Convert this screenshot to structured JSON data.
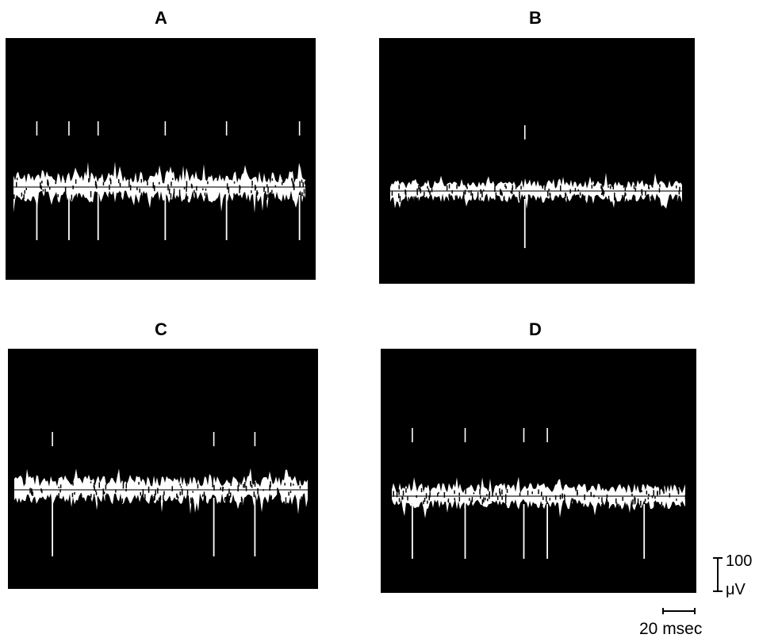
{
  "panels": [
    {
      "label": "A",
      "noise": 1.25,
      "spikes_up": [
        0.08,
        0.19,
        0.29,
        0.52,
        0.73,
        0.98
      ],
      "spikes_down": [
        0.08,
        0.19,
        0.29,
        0.52,
        0.73,
        0.98
      ],
      "seed": 11
    },
    {
      "label": "B",
      "noise": 0.9,
      "spikes_up": [
        0.46
      ],
      "spikes_down": [
        0.46
      ],
      "seed": 23
    },
    {
      "label": "C",
      "noise": 1.15,
      "spikes_up": [
        0.13,
        0.68,
        0.82
      ],
      "spikes_down": [
        0.13,
        0.68,
        0.82
      ],
      "seed": 37
    },
    {
      "label": "D",
      "noise": 1.05,
      "spikes_up": [
        0.07,
        0.25,
        0.45,
        0.53
      ],
      "spikes_down": [
        0.07,
        0.25,
        0.45,
        0.53,
        0.86
      ],
      "seed": 53
    }
  ],
  "scale_bars": {
    "voltage_value": "100",
    "voltage_unit": "μV",
    "time_label": "20 msec"
  }
}
